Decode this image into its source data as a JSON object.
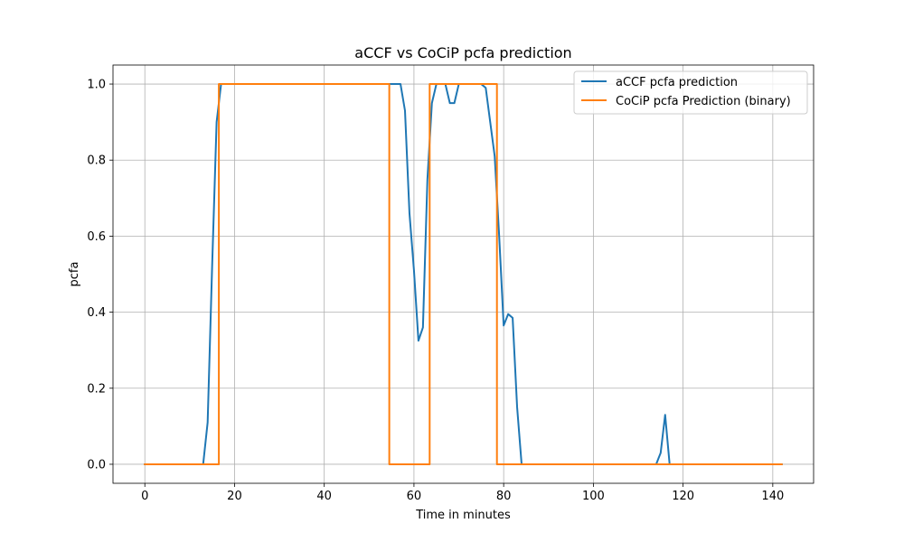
{
  "chart_data": {
    "type": "line",
    "title": "aCCF vs CoCiP pcfa prediction",
    "xlabel": "Time in minutes",
    "ylabel": "pcfa",
    "xlim": [
      -7.1,
      149.1
    ],
    "ylim": [
      -0.05,
      1.05
    ],
    "xticks": [
      0,
      20,
      40,
      60,
      80,
      100,
      120,
      140
    ],
    "yticks": [
      0.0,
      0.2,
      0.4,
      0.6,
      0.8,
      1.0
    ],
    "xtick_labels": [
      "0",
      "20",
      "40",
      "60",
      "80",
      "100",
      "120",
      "140"
    ],
    "ytick_labels": [
      "0.0",
      "0.2",
      "0.4",
      "0.6",
      "0.8",
      "1.0"
    ],
    "grid": true,
    "legend_position": "top-right",
    "series": [
      {
        "name": "aCCF pcfa prediction",
        "color": "#1f77b4",
        "x": [
          0,
          13,
          14,
          15,
          16,
          17,
          55,
          56,
          57,
          58,
          59,
          60,
          61,
          62,
          63,
          64,
          65,
          66,
          67,
          68,
          69,
          70,
          71,
          72,
          73,
          74,
          75,
          76,
          77,
          78,
          79,
          80,
          81,
          82,
          83,
          84,
          85,
          114,
          115,
          116,
          117,
          118,
          142
        ],
        "y": [
          0,
          0,
          0.11,
          0.52,
          0.9,
          1.0,
          1.0,
          1.0,
          1.0,
          0.93,
          0.66,
          0.51,
          0.325,
          0.36,
          0.75,
          0.95,
          1.0,
          1.0,
          1.0,
          0.95,
          0.95,
          1.0,
          1.0,
          1.0,
          1.0,
          1.0,
          1.0,
          0.99,
          0.9,
          0.81,
          0.6,
          0.365,
          0.395,
          0.385,
          0.15,
          0.0,
          0.0,
          0.0,
          0.03,
          0.13,
          0.0,
          0.0,
          0.0
        ]
      },
      {
        "name": "CoCiP pcfa Prediction (binary)",
        "color": "#ff7f0e",
        "step": true,
        "x": [
          0,
          16.5,
          54.5,
          63.5,
          78.5,
          142
        ],
        "y": [
          0,
          1,
          0,
          1,
          0,
          0
        ]
      }
    ]
  }
}
